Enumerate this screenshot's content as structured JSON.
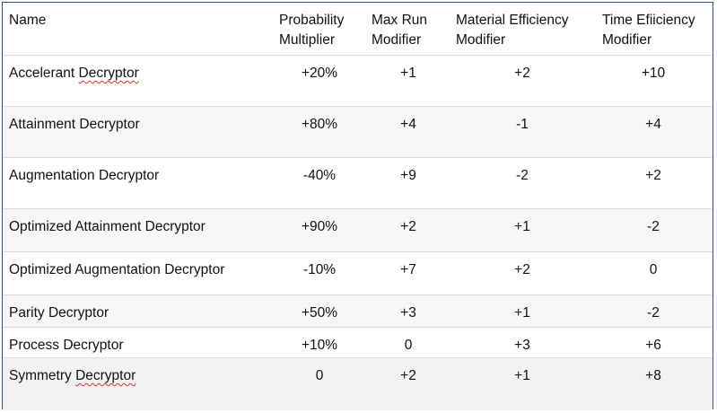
{
  "table": {
    "header_lines": [
      [
        "Name"
      ],
      [
        "Probability",
        "Multiplier"
      ],
      [
        "Max Run",
        "Modifier"
      ],
      [
        "Material Efficiency",
        "Modifier"
      ],
      [
        "Time Efiiciency",
        "Modifier"
      ]
    ],
    "rows": [
      {
        "name_first": "Accelerant",
        "name_last": "Decryptor",
        "values": [
          "+20%",
          "+1",
          "+2",
          "+10"
        ]
      },
      {
        "name_first": "Attainment",
        "name_last": "Decryptor",
        "values": [
          "+80%",
          "+4",
          "-1",
          "+4"
        ]
      },
      {
        "name_first": "Augmentation",
        "name_last": "Decryptor",
        "values": [
          "-40%",
          "+9",
          "-2",
          "+2"
        ]
      },
      {
        "name_first": "Optimized Attainment",
        "name_last": "Decryptor",
        "values": [
          "+90%",
          "+2",
          "+1",
          "-2"
        ]
      },
      {
        "name_first": "Optimized Augmentation",
        "name_last": "Decryptor",
        "values": [
          "-10%",
          "+7",
          "+2",
          "0"
        ]
      },
      {
        "name_first": "Parity",
        "name_last": "Decryptor",
        "values": [
          "+50%",
          "+3",
          "+1",
          "-2"
        ]
      },
      {
        "name_first": "Process",
        "name_last": "Decryptor",
        "values": [
          "+10%",
          "0",
          "+3",
          "+6"
        ]
      },
      {
        "name_first": "Symmetry",
        "name_last": "Decryptor",
        "values": [
          "0",
          "+2",
          "+1",
          "+8"
        ]
      }
    ]
  },
  "colors": {
    "border": "#2f5597",
    "row_alt": "#f7f7f7",
    "row_last": "#f2f2f2",
    "spellcheck": "#e03030"
  }
}
